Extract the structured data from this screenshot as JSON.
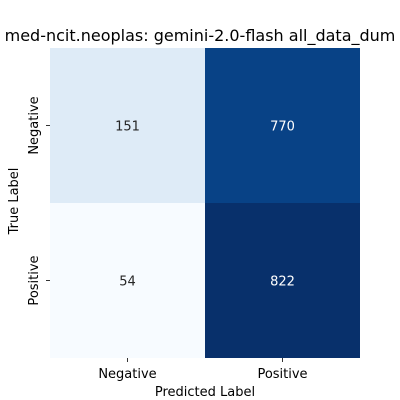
{
  "chart_data": {
    "type": "heatmap",
    "title": "med-ncit.neoplas: gemini-2.0-flash all_data_dum",
    "xlabel": "Predicted Label",
    "ylabel": "True Label",
    "x_categories": [
      "Negative",
      "Positive"
    ],
    "y_categories": [
      "Negative",
      "Positive"
    ],
    "values": [
      [
        151,
        770
      ],
      [
        54,
        822
      ]
    ],
    "colormap": "Blues",
    "colorbar": false,
    "grid": false
  }
}
